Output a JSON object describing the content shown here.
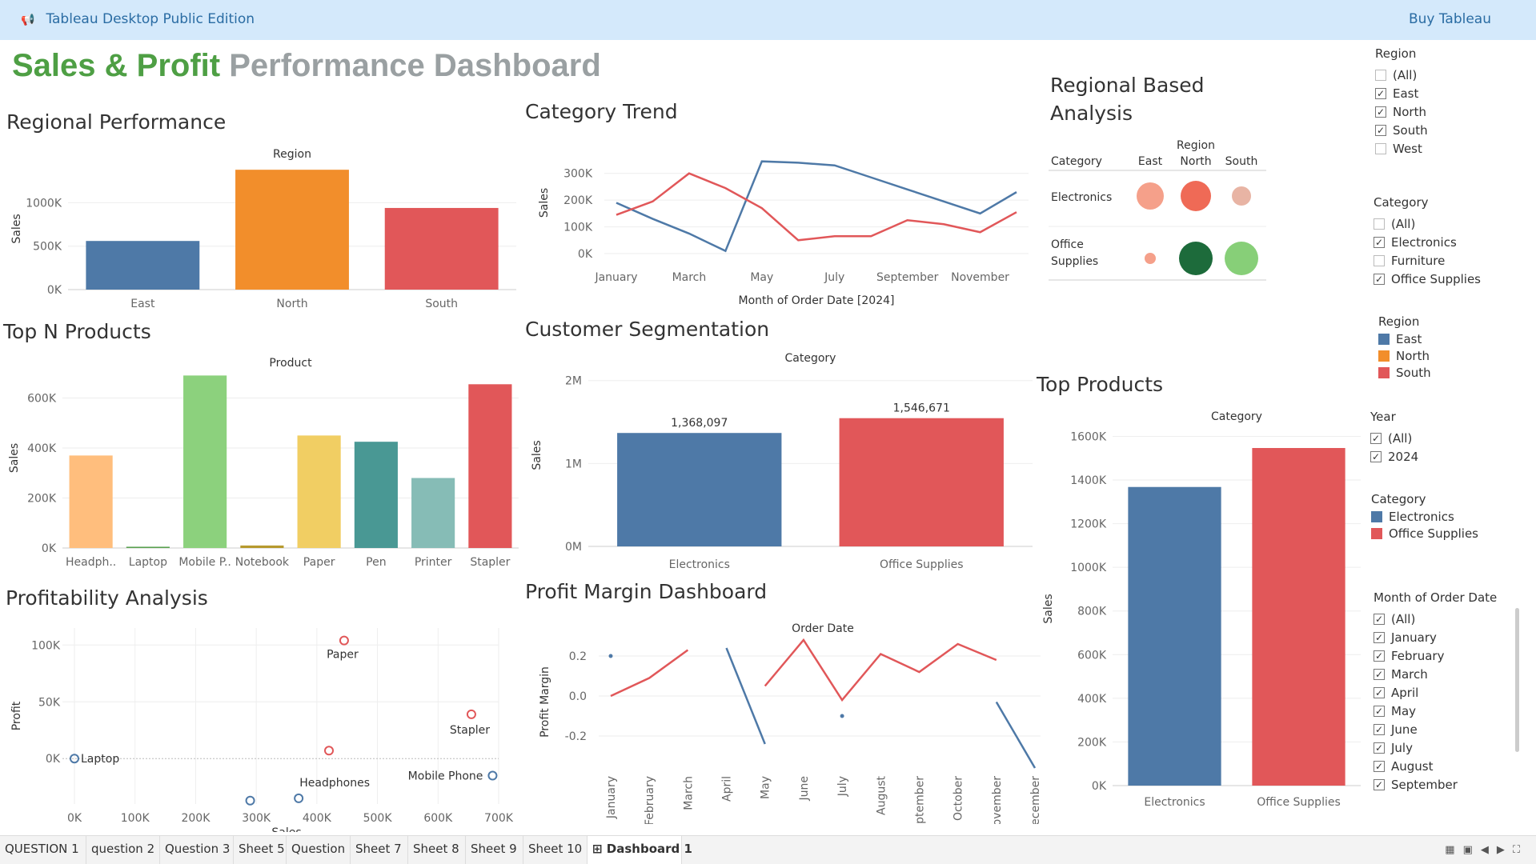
{
  "app": {
    "title": "Tableau Desktop Public Edition",
    "buy": "Buy Tableau",
    "icon": "megaphone-icon"
  },
  "dashboard_title": {
    "part1": "Sales & Profit",
    "part2": "Performance Dashboard"
  },
  "sheets": {
    "regional": {
      "title": "Regional Performance",
      "header": "Region",
      "ylabel": "Sales"
    },
    "trend": {
      "title": "Category Trend",
      "ylabel": "Sales",
      "xlabel": "Month of Order Date [2024]"
    },
    "regional_based": {
      "title_line1": "Regional Based",
      "title_line2": "Analysis",
      "col_header": "Region",
      "row_header": "Category"
    },
    "topn": {
      "title": "Top N Products",
      "header": "Product",
      "ylabel": "Sales"
    },
    "segmentation": {
      "title": "Customer Segmentation",
      "header": "Category",
      "ylabel": "Sales"
    },
    "top_products": {
      "title": "Top Products",
      "header": "Category",
      "ylabel": "Sales"
    },
    "profitability": {
      "title": "Profitability Analysis",
      "xlabel": "Sales",
      "ylabel": "Profit"
    },
    "margin": {
      "title": "Profit Margin Dashboard",
      "header": "Order Date",
      "ylabel": "Profit Margin"
    }
  },
  "chart_data": [
    {
      "id": "regional",
      "type": "bar",
      "categories": [
        "East",
        "North",
        "South"
      ],
      "values": [
        560000,
        1380000,
        940000
      ],
      "colors": [
        "#4e79a7",
        "#f28e2b",
        "#e15759"
      ],
      "yticks": [
        "0K",
        "500K",
        "1000K"
      ],
      "ylim": [
        0,
        1400000
      ]
    },
    {
      "id": "trend",
      "type": "line",
      "categories": [
        "January",
        "February",
        "March",
        "April",
        "May",
        "June",
        "July",
        "August",
        "September",
        "October",
        "November",
        "December"
      ],
      "xtick_labels": [
        "January",
        "",
        "March",
        "",
        "May",
        "",
        "July",
        "",
        "September",
        "",
        "November",
        ""
      ],
      "yticks": [
        "0K",
        "100K",
        "200K",
        "300K"
      ],
      "ylim": [
        0,
        380000
      ],
      "series": [
        {
          "color": "#4e79a7",
          "values": [
            190000,
            130000,
            75000,
            10000,
            345000,
            340000,
            330000,
            285000,
            240000,
            195000,
            150000,
            230000
          ]
        },
        {
          "color": "#e15759",
          "values": [
            145000,
            195000,
            300000,
            245000,
            170000,
            50000,
            65000,
            65000,
            125000,
            110000,
            80000,
            155000
          ]
        }
      ]
    },
    {
      "id": "regional_based",
      "type": "table",
      "columns": [
        "East",
        "North",
        "South"
      ],
      "rows": [
        {
          "label": "Electronics",
          "sizes": [
            17,
            19,
            12
          ],
          "colors": [
            "#f5a08a",
            "#ef6a56",
            "#e8b4a4"
          ]
        },
        {
          "label_line1": "Office",
          "label_line2": "Supplies",
          "label": "Office Supplies",
          "sizes": [
            7,
            21,
            21
          ],
          "colors": [
            "#f5a08a",
            "#1d6b3b",
            "#87cf78"
          ]
        }
      ]
    },
    {
      "id": "topn",
      "type": "bar",
      "categories": [
        "Headph..",
        "Laptop",
        "Mobile P..",
        "Notebook",
        "Paper",
        "Pen",
        "Printer",
        "Stapler"
      ],
      "values": [
        370000,
        5000,
        690000,
        10000,
        450000,
        425000,
        280000,
        655000
      ],
      "colors": [
        "#ffbe7d",
        "#59a14f",
        "#8cd17d",
        "#b6992d",
        "#f1ce63",
        "#499894",
        "#86bcb6",
        "#e15759"
      ],
      "yticks": [
        "0K",
        "200K",
        "400K",
        "600K"
      ],
      "ylim": [
        0,
        720000
      ]
    },
    {
      "id": "segmentation",
      "type": "bar",
      "categories": [
        "Electronics",
        "Office Supplies"
      ],
      "values": [
        1368097,
        1546671
      ],
      "labels": [
        "1,368,097",
        "1,546,671"
      ],
      "colors": [
        "#4e79a7",
        "#e15759"
      ],
      "yticks": [
        "0M",
        "1M",
        "2M"
      ],
      "ylim": [
        0,
        2200000
      ]
    },
    {
      "id": "top_products",
      "type": "bar",
      "categories": [
        "Electronics",
        "Office Supplies"
      ],
      "values": [
        1368097,
        1546671
      ],
      "colors": [
        "#4e79a7",
        "#e15759"
      ],
      "yticks": [
        "0K",
        "200K",
        "400K",
        "600K",
        "800K",
        "1000K",
        "1200K",
        "1400K",
        "1600K"
      ],
      "ylim": [
        0,
        1620000
      ]
    },
    {
      "id": "profitability",
      "type": "scatter",
      "xticks": [
        "0K",
        "100K",
        "200K",
        "300K",
        "400K",
        "500K",
        "600K",
        "700K"
      ],
      "yticks": [
        "0K",
        "50K",
        "100K"
      ],
      "xlim": [
        0,
        700000
      ],
      "ylim": [
        -40000,
        115000
      ],
      "points": [
        {
          "x": 0,
          "y": 0,
          "label": "Laptop",
          "color": "#4e79a7"
        },
        {
          "x": 445000,
          "y": 104000,
          "label": "Paper",
          "color": "#e15759"
        },
        {
          "x": 655000,
          "y": 39000,
          "label": "Stapler",
          "color": "#e15759"
        },
        {
          "x": 420000,
          "y": 7000,
          "label": "",
          "color": "#e15759"
        },
        {
          "x": 690000,
          "y": -15000,
          "label": "Mobile Phone",
          "color": "#4e79a7"
        },
        {
          "x": 370000,
          "y": -35000,
          "label": "Headphones",
          "color": "#4e79a7"
        },
        {
          "x": 290000,
          "y": -37000,
          "label": "",
          "color": "#4e79a7"
        }
      ]
    },
    {
      "id": "margin",
      "type": "line",
      "categories": [
        "January",
        "February",
        "March",
        "April",
        "May",
        "June",
        "July",
        "August",
        "September",
        "October",
        "November",
        "December"
      ],
      "yticks": [
        "-0.2",
        "0.0",
        "0.2"
      ],
      "ylim": [
        -0.38,
        0.32
      ],
      "series": [
        {
          "color": "#4e79a7",
          "values": [
            0.2,
            null,
            null,
            0.24,
            -0.24,
            null,
            -0.1,
            null,
            null,
            null,
            -0.03,
            -0.36
          ]
        },
        {
          "color": "#e15759",
          "values": [
            0.0,
            0.09,
            0.23,
            null,
            0.05,
            0.28,
            -0.02,
            0.21,
            0.12,
            0.26,
            0.18,
            null
          ]
        }
      ]
    }
  ],
  "filters": {
    "region": {
      "title": "Region",
      "options": [
        {
          "label": "(All)",
          "checked": false
        },
        {
          "label": "East",
          "checked": true
        },
        {
          "label": "North",
          "checked": true
        },
        {
          "label": "South",
          "checked": true
        },
        {
          "label": "West",
          "checked": false
        }
      ]
    },
    "category": {
      "title": "Category",
      "options": [
        {
          "label": "(All)",
          "checked": false
        },
        {
          "label": "Electronics",
          "checked": true
        },
        {
          "label": "Furniture",
          "checked": false
        },
        {
          "label": "Office Supplies",
          "checked": true
        }
      ]
    },
    "year": {
      "title": "Year",
      "options": [
        {
          "label": "(All)",
          "checked": true
        },
        {
          "label": "2024",
          "checked": true
        }
      ]
    },
    "month": {
      "title": "Month of Order Date",
      "options": [
        {
          "label": "(All)",
          "checked": true
        },
        {
          "label": "January",
          "checked": true
        },
        {
          "label": "February",
          "checked": true
        },
        {
          "label": "March",
          "checked": true
        },
        {
          "label": "April",
          "checked": true
        },
        {
          "label": "May",
          "checked": true
        },
        {
          "label": "June",
          "checked": true
        },
        {
          "label": "July",
          "checked": true
        },
        {
          "label": "August",
          "checked": true
        },
        {
          "label": "September",
          "checked": true
        }
      ]
    }
  },
  "legends": {
    "region": {
      "title": "Region",
      "items": [
        {
          "label": "East",
          "color": "#4e79a7"
        },
        {
          "label": "North",
          "color": "#f28e2b"
        },
        {
          "label": "South",
          "color": "#e15759"
        }
      ]
    },
    "category": {
      "title": "Category",
      "items": [
        {
          "label": "Electronics",
          "color": "#4e79a7"
        },
        {
          "label": "Office Supplies",
          "color": "#e15759"
        }
      ]
    }
  },
  "tabs": [
    "QUESTION 1",
    "question 2",
    "Question 3",
    "Sheet 5",
    "Question",
    "Sheet 7",
    "Sheet 8",
    "Sheet 9",
    "Sheet 10",
    "Dashboard 1"
  ],
  "active_tab": "Dashboard 1"
}
